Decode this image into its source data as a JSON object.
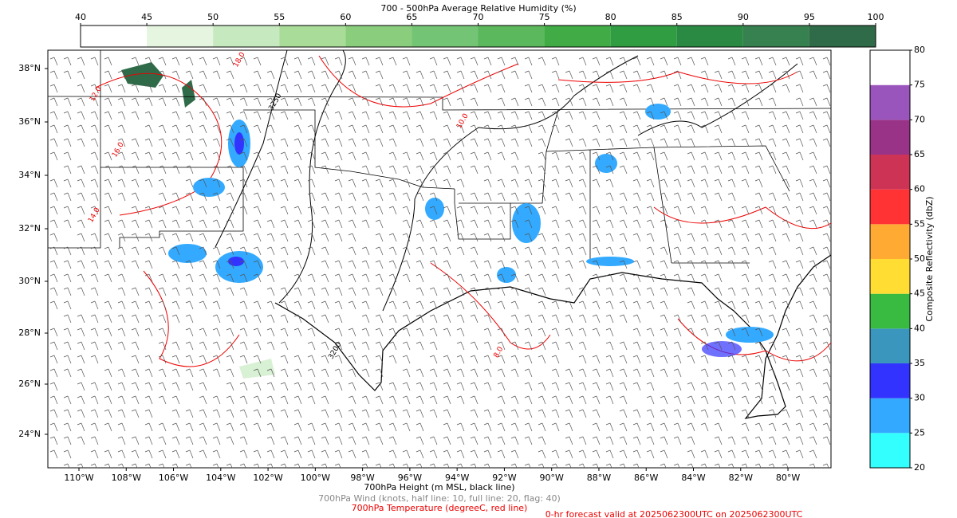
{
  "top_colorbar": {
    "title": "700 - 500hPa Average Relative Humidity (%)",
    "ticks": [
      40,
      45,
      50,
      55,
      60,
      65,
      70,
      75,
      80,
      85,
      90,
      95,
      100
    ],
    "colors": [
      "#ffffff",
      "#e5f5e0",
      "#c7e9c0",
      "#a8dc98",
      "#8acd7c",
      "#74c476",
      "#5cb85c",
      "#41ab45",
      "#309d42",
      "#2a8a44",
      "#37804f",
      "#2f6b48"
    ]
  },
  "right_colorbar": {
    "label": "Composite Reflectivity (dbZ)",
    "ticks": [
      20,
      25,
      30,
      35,
      40,
      45,
      50,
      55,
      60,
      65,
      70,
      75,
      80
    ],
    "colors": [
      "#33ffff",
      "#33aaff",
      "#3333ff",
      "#3a96bd",
      "#38bb40",
      "#ffdd33",
      "#ffaa33",
      "#ff3333",
      "#cc3355",
      "#993388",
      "#9955bb",
      "#ffffff"
    ]
  },
  "map": {
    "lat_labels": [
      "38°N",
      "36°N",
      "34°N",
      "32°N",
      "30°N",
      "28°N",
      "26°N",
      "24°N"
    ],
    "lon_labels": [
      "110°W",
      "108°W",
      "106°W",
      "104°W",
      "102°W",
      "100°W",
      "98°W",
      "96°W",
      "94°W",
      "92°W",
      "90°W",
      "88°W",
      "86°W",
      "84°W",
      "82°W",
      "80°W"
    ],
    "contour_labels": [
      "3250",
      "3200",
      "12.0",
      "8.0",
      "16.0",
      "18.0",
      "14.0",
      "10.0"
    ]
  },
  "footer": {
    "height": "700hPa Height (m MSL, black line)",
    "wind": "700hPa Wind (knots, half line: 10, full line: 20, flag: 40)",
    "temperature": "700hPa Temperature (degreeC, red line)",
    "valid": "0-hr forecast valid at 2025062300UTC on 2025062300UTC"
  }
}
